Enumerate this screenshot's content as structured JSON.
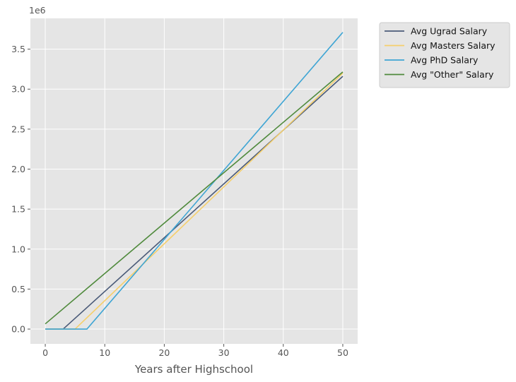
{
  "chart_data": {
    "type": "line",
    "title": "",
    "xlabel": "Years after Highschool",
    "ylabel": "",
    "y_offset_label": "1e6",
    "xlim": [
      -2.5,
      52.5
    ],
    "ylim": [
      -0.185,
      3.885
    ],
    "x_ticks": [
      0,
      10,
      20,
      30,
      40,
      50
    ],
    "x_tick_labels": [
      "0",
      "10",
      "20",
      "30",
      "40",
      "50"
    ],
    "y_ticks": [
      0.0,
      0.5,
      1.0,
      1.5,
      2.0,
      2.5,
      3.0,
      3.5
    ],
    "y_tick_labels": [
      "0.0",
      "0.5",
      "1.0",
      "1.5",
      "2.0",
      "2.5",
      "3.0",
      "3.5"
    ],
    "grid": true,
    "style": "ggplot",
    "legend_position": "outside-top-right",
    "series": [
      {
        "name": "Avg Ugrad Salary",
        "color": "#4a5a78",
        "x": [
          0,
          3,
          50
        ],
        "y": [
          0.0,
          0.0,
          3.16
        ]
      },
      {
        "name": "Avg Masters Salary",
        "color": "#f5cf6b",
        "x": [
          0,
          5,
          50
        ],
        "y": [
          0.0,
          0.0,
          3.2
        ]
      },
      {
        "name": "Avg PhD Salary",
        "color": "#3fa5d4",
        "x": [
          0,
          7,
          50
        ],
        "y": [
          0.0,
          0.0,
          3.71
        ]
      },
      {
        "name": "Avg \"Other\" Salary",
        "color": "#4f8a3c",
        "x": [
          0,
          50
        ],
        "y": [
          0.065,
          3.215
        ]
      }
    ],
    "colors": {
      "plot_background": "#e5e5e5",
      "grid": "#ffffff",
      "tick_label": "#555555",
      "legend_background": "#e5e5e5",
      "legend_border": "#cccccc"
    }
  }
}
